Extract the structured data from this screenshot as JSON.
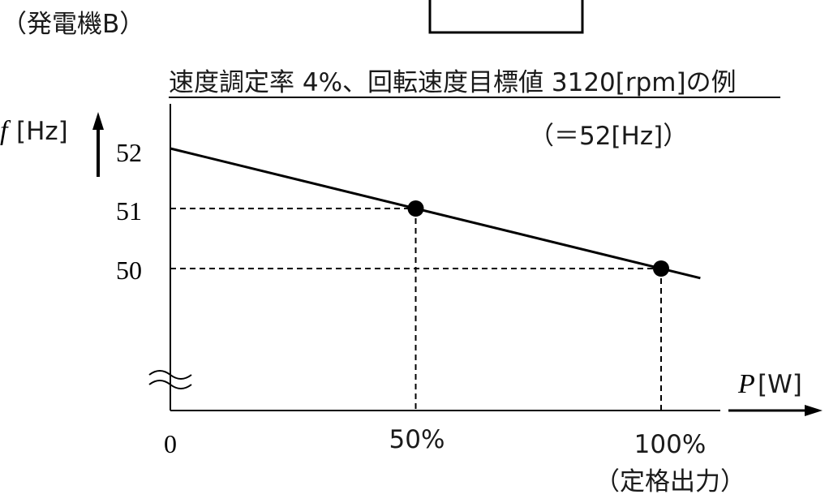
{
  "header": {
    "generator_label": "（発電機B）",
    "condition_title": "速度調定率 4%、回転速度目標値 3120[rpm]の例",
    "target_note": "（＝52[Hz]）"
  },
  "chart_data": {
    "type": "line",
    "y_axis": {
      "symbol": "f",
      "unit": "[Hz]",
      "range": [
        50,
        52
      ],
      "broken": true,
      "ticks": [
        "52",
        "51",
        "50"
      ]
    },
    "x_axis": {
      "symbol": "P",
      "unit": "[W]",
      "ticks": [
        "0",
        "50%",
        "100%"
      ],
      "range_percent": [
        0,
        115
      ]
    },
    "x_subtitle": "（定格出力）",
    "series": [
      {
        "points": [
          {
            "x": 0,
            "y": 52
          },
          {
            "x": 50,
            "y": 51
          },
          {
            "x": 100,
            "y": 50
          }
        ]
      }
    ],
    "markers": [
      {
        "x": 50,
        "y": 51
      },
      {
        "x": 100,
        "y": 50
      }
    ],
    "guide_lines": "dashed",
    "colors": {
      "line": "#000000",
      "text": "#1a1a1a"
    }
  }
}
